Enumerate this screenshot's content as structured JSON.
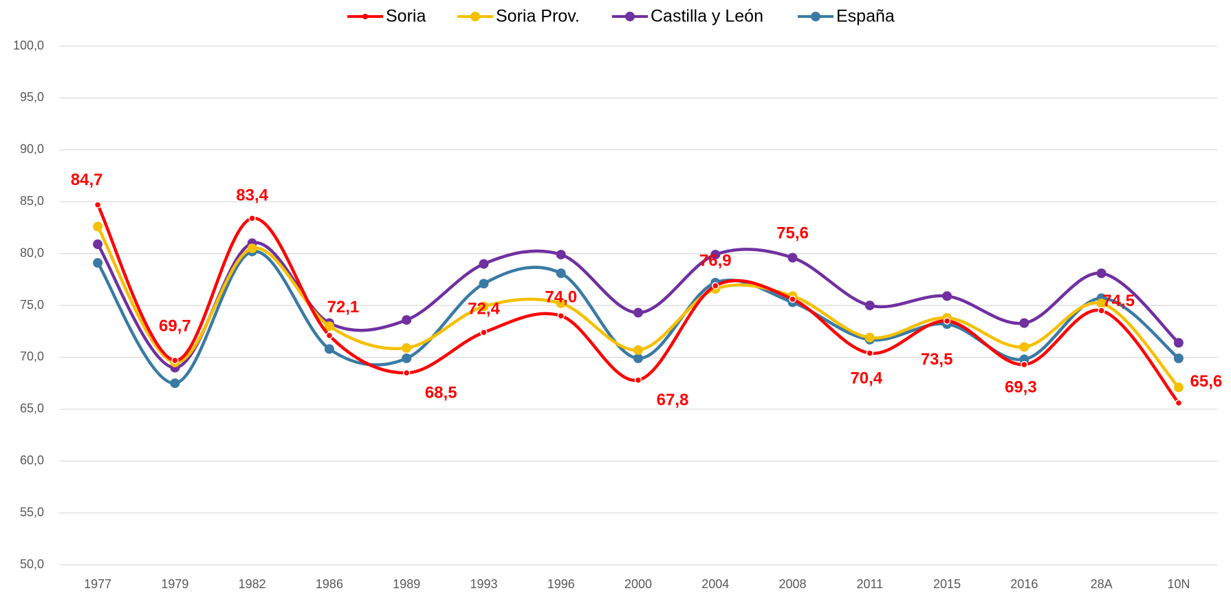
{
  "chart_data": {
    "type": "line",
    "categories": [
      "1977",
      "1979",
      "1982",
      "1986",
      "1989",
      "1993",
      "1996",
      "2000",
      "2004",
      "2008",
      "2011",
      "2015",
      "2016",
      "28A",
      "10N"
    ],
    "series": [
      {
        "name": "Soria",
        "color": "#ff0000",
        "values": [
          84.7,
          69.7,
          83.4,
          72.1,
          68.5,
          72.4,
          74.0,
          67.8,
          76.9,
          75.6,
          70.4,
          73.5,
          69.3,
          74.5,
          65.6
        ],
        "value_labels": [
          "84,7",
          "69,7",
          "83,4",
          "72,1",
          "68,5",
          "72,4",
          "74,0",
          "67,8",
          "76,9",
          "75,6",
          "70,4",
          "73,5",
          "69,3",
          "74,5",
          "65,6"
        ]
      },
      {
        "name": "Soria Prov.",
        "color": "#f5c000",
        "values": [
          82.6,
          69.5,
          80.5,
          73.0,
          70.9,
          74.9,
          75.2,
          70.7,
          76.6,
          75.9,
          71.9,
          73.8,
          71.0,
          75.2,
          67.1
        ]
      },
      {
        "name": "Castilla y León",
        "color": "#7030a0",
        "values": [
          80.9,
          69.0,
          81.0,
          73.3,
          73.6,
          79.0,
          79.9,
          74.3,
          79.9,
          79.6,
          75.0,
          75.9,
          73.3,
          78.1,
          71.4
        ]
      },
      {
        "name": "España",
        "color": "#3a7aa5",
        "values": [
          79.1,
          67.5,
          80.2,
          70.8,
          69.9,
          77.1,
          78.1,
          69.9,
          77.2,
          75.3,
          71.7,
          73.2,
          69.8,
          75.7,
          69.9
        ]
      }
    ],
    "ylim": [
      50,
      100
    ],
    "yticks": [
      {
        "value": 50,
        "label": "50,0"
      },
      {
        "value": 55,
        "label": "55,0"
      },
      {
        "value": 60,
        "label": "60,0"
      },
      {
        "value": 65,
        "label": "65,0"
      },
      {
        "value": 70,
        "label": "70,0"
      },
      {
        "value": 75,
        "label": "75,0"
      },
      {
        "value": 80,
        "label": "80,0"
      },
      {
        "value": 85,
        "label": "85,0"
      },
      {
        "value": 90,
        "label": "90,0"
      },
      {
        "value": 95,
        "label": "95,0"
      },
      {
        "value": 100,
        "label": "100,0"
      }
    ],
    "grid": true,
    "legend": "top"
  }
}
